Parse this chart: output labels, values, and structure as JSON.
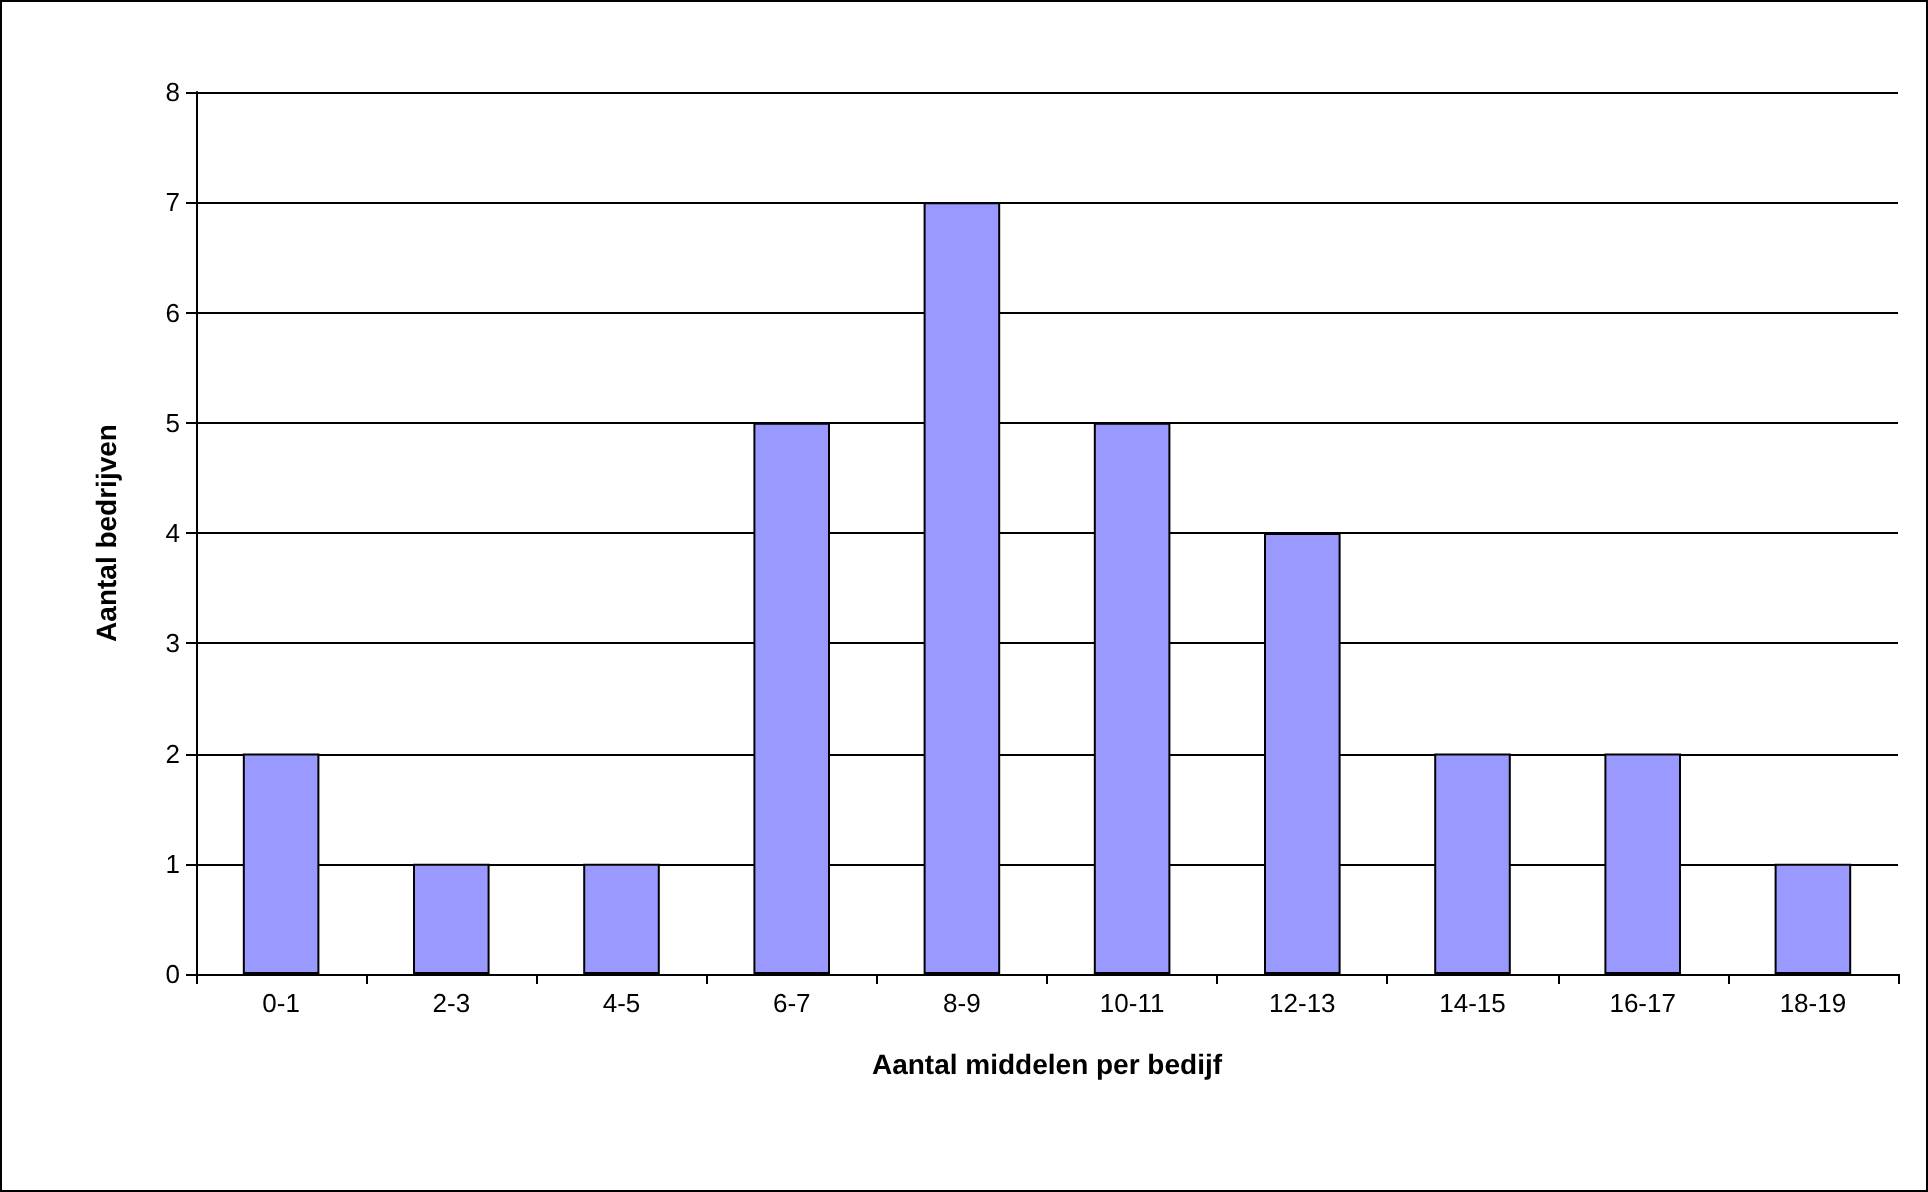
{
  "chart_data": {
    "type": "bar",
    "xlabel": "Aantal middelen per bedijf",
    "ylabel": "Aantal bedrijven",
    "categories": [
      "0-1",
      "2-3",
      "4-5",
      "6-7",
      "8-9",
      "10-11",
      "12-13",
      "14-15",
      "16-17",
      "18-19"
    ],
    "values": [
      2,
      1,
      1,
      5,
      7,
      5,
      4,
      2,
      2,
      1
    ],
    "color": "#9999ff",
    "ylim": [
      0,
      8
    ],
    "yticks": [
      0,
      1,
      2,
      3,
      4,
      5,
      6,
      7,
      8
    ],
    "grid": "y"
  }
}
